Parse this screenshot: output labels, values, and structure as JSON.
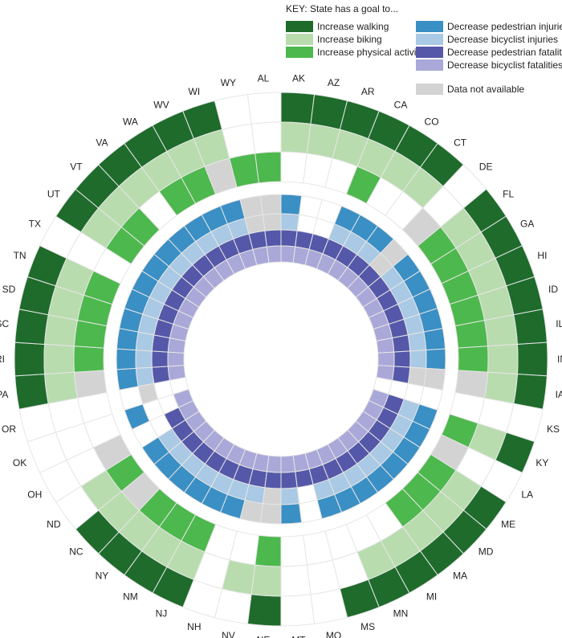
{
  "legend": {
    "title": "KEY: State has a goal to...",
    "items": [
      {
        "key": "walk",
        "label": "Increase walking",
        "color": "#1e6b2b"
      },
      {
        "key": "bike",
        "label": "Increase biking",
        "color": "#b8dcae"
      },
      {
        "key": "phys",
        "label": "Increase physical activity",
        "color": "#4db84d"
      },
      {
        "key": "pinj",
        "label": "Decrease pedestrian injuries",
        "color": "#3a8fc4"
      },
      {
        "key": "binj",
        "label": "Decrease bicyclist injuries",
        "color": "#a9c9e4"
      },
      {
        "key": "pfat",
        "label": "Decrease pedestrian fatalities",
        "color": "#5558a8"
      },
      {
        "key": "bfat",
        "label": "Decrease bicyclist fatalities",
        "color": "#a9a8d8"
      },
      {
        "key": "na",
        "label": "Data not available",
        "color": "#d3d3d3"
      }
    ]
  },
  "chart_data": {
    "type": "radial-heatmap",
    "title": "KEY: State has a goal to...",
    "categories": [
      "AL",
      "AK",
      "AZ",
      "AR",
      "CA",
      "CO",
      "CT",
      "DE",
      "FL",
      "GA",
      "HI",
      "ID",
      "IL",
      "IN",
      "IA",
      "KS",
      "KY",
      "LA",
      "ME",
      "MD",
      "MA",
      "MI",
      "MN",
      "MS",
      "MO",
      "MT",
      "NE",
      "NV",
      "NH",
      "NJ",
      "NM",
      "NY",
      "NC",
      "ND",
      "OH",
      "OK",
      "OR",
      "PA",
      "RI",
      "SC",
      "SD",
      "TN",
      "TX",
      "UT",
      "VT",
      "VA",
      "WA",
      "WV",
      "WI",
      "WY"
    ],
    "rings": [
      "Increase walking",
      "Increase biking",
      "Increase physical activity",
      "Decrease pedestrian injuries",
      "Decrease bicyclist injuries",
      "Decrease pedestrian fatalities",
      "Decrease bicyclist fatalities"
    ],
    "values_encoding": {
      "1": "goal",
      "0": "no goal",
      "na": "Data not available"
    },
    "states": {
      "AL": [
        0,
        0,
        1,
        "na",
        "na",
        1,
        1
      ],
      "AK": [
        1,
        1,
        0,
        1,
        1,
        1,
        1
      ],
      "AZ": [
        1,
        1,
        0,
        0,
        0,
        1,
        1
      ],
      "AR": [
        1,
        1,
        0,
        0,
        0,
        1,
        1
      ],
      "CA": [
        1,
        1,
        1,
        1,
        1,
        1,
        1
      ],
      "CO": [
        1,
        1,
        0,
        1,
        1,
        1,
        1
      ],
      "CT": [
        1,
        1,
        0,
        1,
        1,
        1,
        1
      ],
      "DE": [
        0,
        0,
        "na",
        "na",
        "na",
        1,
        1
      ],
      "FL": [
        1,
        1,
        1,
        1,
        1,
        1,
        1
      ],
      "GA": [
        1,
        1,
        1,
        1,
        1,
        1,
        1
      ],
      "HI": [
        1,
        1,
        1,
        1,
        1,
        1,
        1
      ],
      "ID": [
        1,
        1,
        1,
        1,
        1,
        1,
        1
      ],
      "IL": [
        1,
        1,
        1,
        1,
        1,
        1,
        1
      ],
      "IN": [
        1,
        1,
        1,
        1,
        1,
        1,
        1
      ],
      "IA": [
        1,
        1,
        "na",
        "na",
        "na",
        1,
        1
      ],
      "KS": [
        0,
        0,
        0,
        0,
        0,
        0,
        0
      ],
      "KY": [
        1,
        1,
        1,
        1,
        1,
        1,
        1
      ],
      "LA": [
        0,
        0,
        "na",
        1,
        1,
        1,
        1
      ],
      "ME": [
        1,
        1,
        1,
        1,
        1,
        1,
        1
      ],
      "MD": [
        1,
        1,
        1,
        1,
        1,
        1,
        1
      ],
      "MA": [
        1,
        1,
        1,
        1,
        1,
        1,
        1
      ],
      "MI": [
        1,
        1,
        0,
        1,
        1,
        1,
        1
      ],
      "MN": [
        1,
        1,
        0,
        1,
        1,
        1,
        1
      ],
      "MS": [
        1,
        0,
        0,
        1,
        1,
        1,
        1
      ],
      "MO": [
        0,
        0,
        0,
        0,
        0,
        1,
        1
      ],
      "MT": [
        0,
        0,
        0,
        1,
        1,
        1,
        1
      ],
      "NE": [
        1,
        1,
        1,
        "na",
        "na",
        1,
        1
      ],
      "NV": [
        0,
        1,
        0,
        "na",
        1,
        1,
        1
      ],
      "NH": [
        0,
        0,
        0,
        1,
        1,
        1,
        1
      ],
      "NJ": [
        1,
        1,
        1,
        1,
        1,
        1,
        1
      ],
      "NM": [
        1,
        1,
        1,
        1,
        1,
        1,
        1
      ],
      "NY": [
        1,
        1,
        1,
        1,
        1,
        1,
        1
      ],
      "NC": [
        1,
        1,
        "na",
        1,
        1,
        1,
        1
      ],
      "ND": [
        0,
        1,
        1,
        1,
        1,
        1,
        1
      ],
      "OH": [
        0,
        0,
        "na",
        0,
        0,
        1,
        1
      ],
      "OK": [
        0,
        0,
        0,
        1,
        0,
        0,
        1
      ],
      "OR": [
        0,
        0,
        0,
        0,
        "na",
        0,
        0
      ],
      "PA": [
        1,
        1,
        "na",
        1,
        1,
        1,
        1
      ],
      "RI": [
        1,
        1,
        1,
        1,
        1,
        1,
        1
      ],
      "SC": [
        1,
        1,
        1,
        1,
        1,
        1,
        1
      ],
      "SD": [
        1,
        1,
        1,
        1,
        1,
        1,
        1
      ],
      "TN": [
        1,
        1,
        1,
        1,
        1,
        1,
        1
      ],
      "TX": [
        0,
        0,
        0,
        1,
        1,
        1,
        1
      ],
      "UT": [
        1,
        1,
        1,
        1,
        1,
        1,
        1
      ],
      "VT": [
        1,
        1,
        1,
        1,
        1,
        1,
        1
      ],
      "VA": [
        1,
        1,
        0,
        1,
        1,
        1,
        1
      ],
      "WA": [
        1,
        1,
        1,
        1,
        1,
        1,
        1
      ],
      "WV": [
        1,
        1,
        1,
        1,
        1,
        1,
        1
      ],
      "WI": [
        1,
        1,
        "na",
        1,
        1,
        1,
        1
      ],
      "WY": [
        0,
        0,
        1,
        "na",
        "na",
        1,
        1
      ]
    }
  }
}
